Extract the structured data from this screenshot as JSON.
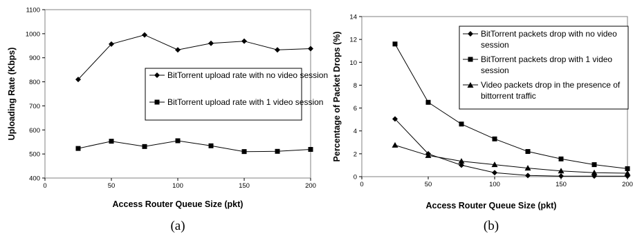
{
  "chart_data": [
    {
      "type": "line",
      "caption": "(a)",
      "xlabel": "Access Router Queue Size (pkt)",
      "ylabel": "Uploading Rate (Kbps)",
      "xlim": [
        0,
        200
      ],
      "ylim": [
        400,
        1100
      ],
      "xticks": [
        0,
        50,
        100,
        150,
        200
      ],
      "yticks": [
        400,
        500,
        600,
        700,
        800,
        900,
        1000,
        1100
      ],
      "grid": false,
      "legend": "right-center",
      "series": [
        {
          "name": "BitTorrent upload rate with no video session",
          "marker": "diamond",
          "color": "#000000",
          "x": [
            25,
            50,
            75,
            100,
            125,
            150,
            175,
            200
          ],
          "y": [
            810,
            957,
            995,
            933,
            960,
            969,
            933,
            938
          ]
        },
        {
          "name": "BitTorrent upload rate with 1 video session",
          "marker": "square",
          "color": "#000000",
          "x": [
            25,
            50,
            75,
            100,
            125,
            150,
            175,
            200
          ],
          "y": [
            523,
            553,
            531,
            555,
            534,
            510,
            511,
            519
          ]
        }
      ]
    },
    {
      "type": "line",
      "caption": "(b)",
      "xlabel": "Access Router Queue Size (pkt)",
      "ylabel": "Percentage of Packet Drops (%)",
      "xlim": [
        0,
        200
      ],
      "ylim": [
        0,
        14
      ],
      "xticks": [
        0,
        50,
        100,
        150,
        200
      ],
      "yticks": [
        0,
        2,
        4,
        6,
        8,
        10,
        12,
        14
      ],
      "grid": false,
      "legend": "top-right",
      "series": [
        {
          "name": "BitTorrent packets drop with no video session",
          "marker": "diamond",
          "color": "#000000",
          "x": [
            25,
            50,
            75,
            100,
            125,
            150,
            175,
            200
          ],
          "y": [
            5.05,
            2.0,
            1.0,
            0.35,
            0.1,
            0.05,
            0.05,
            0.05
          ]
        },
        {
          "name": "BitTorrent packets drop with 1 video session",
          "marker": "square",
          "color": "#000000",
          "x": [
            25,
            50,
            75,
            100,
            125,
            150,
            175,
            200
          ],
          "y": [
            11.6,
            6.5,
            4.6,
            3.3,
            2.2,
            1.55,
            1.05,
            0.7
          ]
        },
        {
          "name": "Video packets drop in the presence of bittorrent traffic",
          "marker": "triangle",
          "color": "#000000",
          "x": [
            25,
            50,
            75,
            100,
            125,
            150,
            175,
            200
          ],
          "y": [
            2.75,
            1.85,
            1.35,
            1.05,
            0.75,
            0.5,
            0.35,
            0.3
          ]
        }
      ]
    }
  ]
}
